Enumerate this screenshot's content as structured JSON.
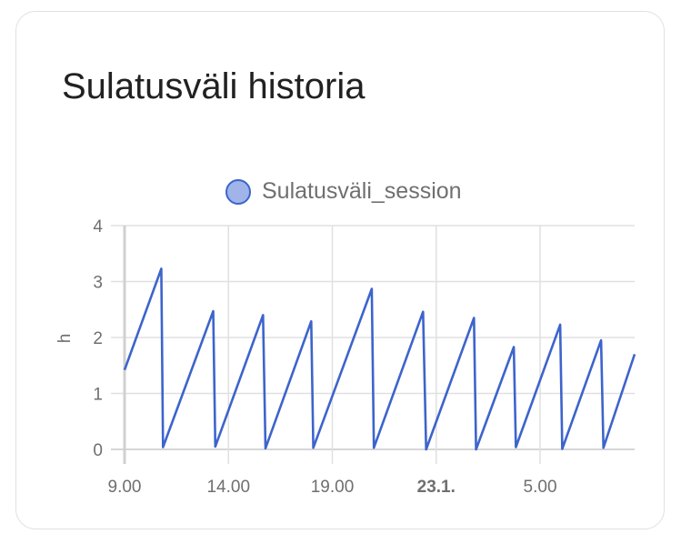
{
  "card": {
    "title": "Sulatusväli historia"
  },
  "chart_data": {
    "type": "line",
    "title": "Sulatusväli historia",
    "ylabel": "h",
    "xlabel": "",
    "ylim": [
      0,
      4
    ],
    "yticks": [
      "0",
      "1",
      "2",
      "3",
      "4"
    ],
    "xlim": [
      "22.1. 9:00",
      "23.1. 9:33"
    ],
    "xticks": [
      {
        "at": "22.1. 9:00",
        "label": "9.00",
        "bold": false
      },
      {
        "at": "22.1. 14:00",
        "label": "14.00",
        "bold": false
      },
      {
        "at": "22.1. 19:00",
        "label": "19.00",
        "bold": false
      },
      {
        "at": "23.1. 0:00",
        "label": "23.1.",
        "bold": true
      },
      {
        "at": "23.1. 5:00",
        "label": "5.00",
        "bold": false
      }
    ],
    "grid": true,
    "legend_position": "top",
    "series": [
      {
        "name": "Sulatusväli_session",
        "color": "#3d64cc",
        "fill": "#a0b4ea",
        "points": [
          [
            "22.1. 9:00",
            1.42
          ],
          [
            "22.1. 10:46",
            3.23
          ],
          [
            "22.1. 10:51",
            0.04
          ],
          [
            "22.1. 13:16",
            2.47
          ],
          [
            "22.1. 13:22",
            0.05
          ],
          [
            "22.1. 15:40",
            2.4
          ],
          [
            "22.1. 15:47",
            0.02
          ],
          [
            "22.1. 17:59",
            2.29
          ],
          [
            "22.1. 18:05",
            0.03
          ],
          [
            "22.1. 20:54",
            2.87
          ],
          [
            "22.1. 21:00",
            0.03
          ],
          [
            "22.1. 23:22",
            2.46
          ],
          [
            "22.1. 23:31",
            0.0
          ],
          [
            "23.1. 1:49",
            2.35
          ],
          [
            "23.1. 1:55",
            0.0
          ],
          [
            "23.1. 3:44",
            1.83
          ],
          [
            "23.1. 3:50",
            0.04
          ],
          [
            "23.1. 5:58",
            2.23
          ],
          [
            "23.1. 6:04",
            0.01
          ],
          [
            "23.1. 7:56",
            1.95
          ],
          [
            "23.1. 8:03",
            0.03
          ],
          [
            "23.1. 9:33",
            1.7
          ]
        ]
      }
    ]
  }
}
